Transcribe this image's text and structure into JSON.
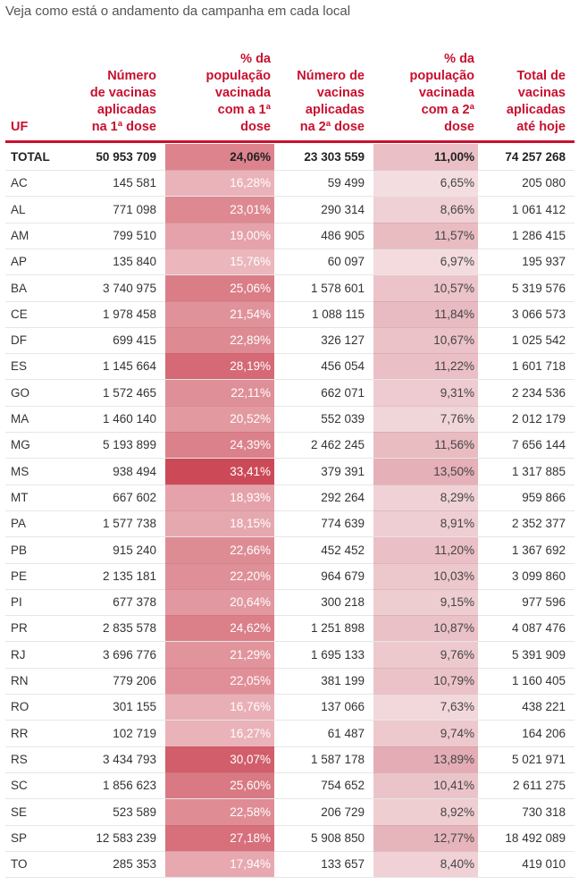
{
  "subtitle": "Veja como está o andamento da campanha em cada local",
  "colors": {
    "header_text": "#c8102e",
    "divider": "#c8102e",
    "dose1_highlight": "#d9616f",
    "dose2_highlight": "#e3b5bc"
  },
  "columns": [
    {
      "key": "uf",
      "lines": [
        "UF"
      ]
    },
    {
      "key": "dose1",
      "lines": [
        "Número",
        "de vacinas",
        "aplicadas",
        "na 1ª dose"
      ]
    },
    {
      "key": "pct1",
      "lines": [
        "% da",
        "população",
        "vacinada",
        "com a 1ª",
        "dose"
      ]
    },
    {
      "key": "dose2",
      "lines": [
        "Número de",
        "vacinas",
        "aplicadas",
        "na 2ª dose"
      ]
    },
    {
      "key": "pct2",
      "lines": [
        "% da",
        "população",
        "vacinada",
        "com a 2ª",
        "dose"
      ]
    },
    {
      "key": "total",
      "lines": [
        "Total de",
        "vacinas",
        "aplicadas",
        "até hoje"
      ]
    }
  ],
  "rows": [
    {
      "uf": "TOTAL",
      "dose1": "50 953 709",
      "pct1": "24,06%",
      "dose2": "23 303 559",
      "pct2": "11,00%",
      "total": "74 257 268"
    },
    {
      "uf": "AC",
      "dose1": "145 581",
      "pct1": "16,28%",
      "dose2": "59 499",
      "pct2": "6,65%",
      "total": "205 080"
    },
    {
      "uf": "AL",
      "dose1": "771 098",
      "pct1": "23,01%",
      "dose2": "290 314",
      "pct2": "8,66%",
      "total": "1 061 412"
    },
    {
      "uf": "AM",
      "dose1": "799 510",
      "pct1": "19,00%",
      "dose2": "486 905",
      "pct2": "11,57%",
      "total": "1 286 415"
    },
    {
      "uf": "AP",
      "dose1": "135 840",
      "pct1": "15,76%",
      "dose2": "60 097",
      "pct2": "6,97%",
      "total": "195 937"
    },
    {
      "uf": "BA",
      "dose1": "3 740 975",
      "pct1": "25,06%",
      "dose2": "1 578 601",
      "pct2": "10,57%",
      "total": "5 319 576"
    },
    {
      "uf": "CE",
      "dose1": "1 978 458",
      "pct1": "21,54%",
      "dose2": "1 088 115",
      "pct2": "11,84%",
      "total": "3 066 573"
    },
    {
      "uf": "DF",
      "dose1": "699 415",
      "pct1": "22,89%",
      "dose2": "326 127",
      "pct2": "10,67%",
      "total": "1 025 542"
    },
    {
      "uf": "ES",
      "dose1": "1 145 664",
      "pct1": "28,19%",
      "dose2": "456 054",
      "pct2": "11,22%",
      "total": "1 601 718"
    },
    {
      "uf": "GO",
      "dose1": "1 572 465",
      "pct1": "22,11%",
      "dose2": "662 071",
      "pct2": "9,31%",
      "total": "2 234 536"
    },
    {
      "uf": "MA",
      "dose1": "1 460 140",
      "pct1": "20,52%",
      "dose2": "552 039",
      "pct2": "7,76%",
      "total": "2 012 179"
    },
    {
      "uf": "MG",
      "dose1": "5 193 899",
      "pct1": "24,39%",
      "dose2": "2 462 245",
      "pct2": "11,56%",
      "total": "7 656 144"
    },
    {
      "uf": "MS",
      "dose1": "938 494",
      "pct1": "33,41%",
      "dose2": "379 391",
      "pct2": "13,50%",
      "total": "1 317 885"
    },
    {
      "uf": "MT",
      "dose1": "667 602",
      "pct1": "18,93%",
      "dose2": "292 264",
      "pct2": "8,29%",
      "total": "959 866"
    },
    {
      "uf": "PA",
      "dose1": "1 577 738",
      "pct1": "18,15%",
      "dose2": "774 639",
      "pct2": "8,91%",
      "total": "2 352 377"
    },
    {
      "uf": "PB",
      "dose1": "915 240",
      "pct1": "22,66%",
      "dose2": "452 452",
      "pct2": "11,20%",
      "total": "1 367 692"
    },
    {
      "uf": "PE",
      "dose1": "2 135 181",
      "pct1": "22,20%",
      "dose2": "964 679",
      "pct2": "10,03%",
      "total": "3 099 860"
    },
    {
      "uf": "PI",
      "dose1": "677 378",
      "pct1": "20,64%",
      "dose2": "300 218",
      "pct2": "9,15%",
      "total": "977 596"
    },
    {
      "uf": "PR",
      "dose1": "2 835 578",
      "pct1": "24,62%",
      "dose2": "1 251 898",
      "pct2": "10,87%",
      "total": "4 087 476"
    },
    {
      "uf": "RJ",
      "dose1": "3 696 776",
      "pct1": "21,29%",
      "dose2": "1 695 133",
      "pct2": "9,76%",
      "total": "5 391 909"
    },
    {
      "uf": "RN",
      "dose1": "779 206",
      "pct1": "22,05%",
      "dose2": "381 199",
      "pct2": "10,79%",
      "total": "1 160 405"
    },
    {
      "uf": "RO",
      "dose1": "301 155",
      "pct1": "16,76%",
      "dose2": "137 066",
      "pct2": "7,63%",
      "total": "438 221"
    },
    {
      "uf": "RR",
      "dose1": "102 719",
      "pct1": "16,27%",
      "dose2": "61 487",
      "pct2": "9,74%",
      "total": "164 206"
    },
    {
      "uf": "RS",
      "dose1": "3 434 793",
      "pct1": "30,07%",
      "dose2": "1 587 178",
      "pct2": "13,89%",
      "total": "5 021 971"
    },
    {
      "uf": "SC",
      "dose1": "1 856 623",
      "pct1": "25,60%",
      "dose2": "754 652",
      "pct2": "10,41%",
      "total": "2 611 275"
    },
    {
      "uf": "SE",
      "dose1": "523 589",
      "pct1": "22,58%",
      "dose2": "206 729",
      "pct2": "8,92%",
      "total": "730 318"
    },
    {
      "uf": "SP",
      "dose1": "12 583 239",
      "pct1": "27,18%",
      "dose2": "5 908 850",
      "pct2": "12,77%",
      "total": "18 492 089"
    },
    {
      "uf": "TO",
      "dose1": "285 353",
      "pct1": "17,94%",
      "dose2": "133 657",
      "pct2": "8,40%",
      "total": "419 010"
    }
  ]
}
